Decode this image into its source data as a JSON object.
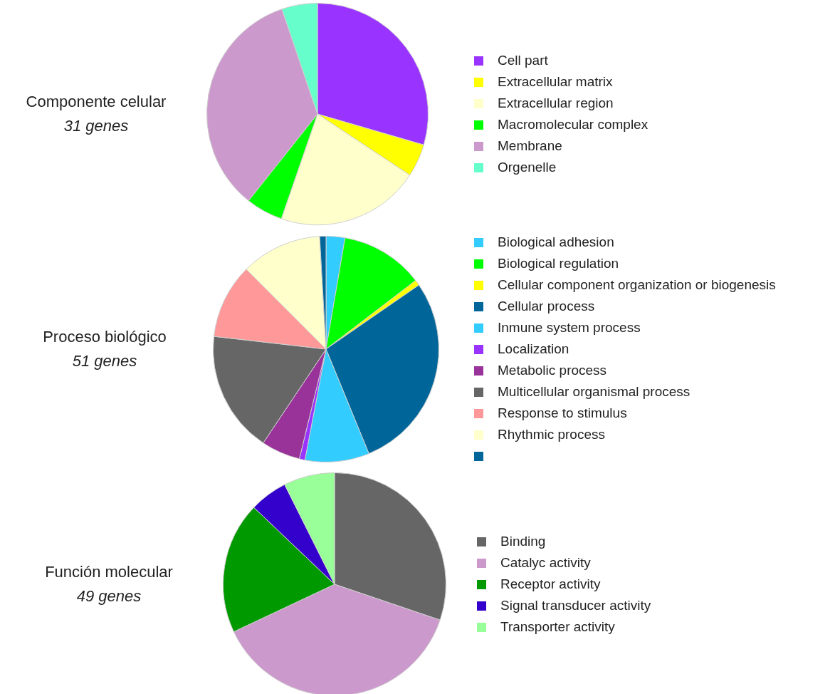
{
  "chart_data": [
    {
      "type": "pie",
      "title": "Componente celular",
      "subtitle": "31 genes",
      "legend": "right",
      "categories": [
        "Cell part",
        "Extracellular matrix",
        "Extracellular region",
        "Macromolecular complex",
        "Membrane",
        "Orgenelle"
      ],
      "values": [
        29.5,
        4.8,
        21.0,
        5.4,
        34.1,
        5.2
      ],
      "colors": [
        "#9933ff",
        "#ffff00",
        "#ffffcc",
        "#00ff00",
        "#cc99cc",
        "#66ffcc"
      ]
    },
    {
      "type": "pie",
      "title": "Proceso biológico",
      "subtitle": "51 genes",
      "legend": "right",
      "categories": [
        "Biological adhesion",
        "Biological regulation",
        "Cellular component organization or biogenesis",
        "Cellular process",
        "Inmune system process",
        "Localization",
        "Metabolic process",
        "Multicellular organismal process",
        "Response to stimulus",
        "Rhythmic process",
        null
      ],
      "values": [
        2.7,
        11.9,
        0.8,
        28.4,
        9.2,
        0.8,
        5.6,
        17.4,
        10.7,
        11.6,
        0.9
      ],
      "colors": [
        "#33ccff",
        "#00ff00",
        "#ffff00",
        "#006699",
        "#33ccff",
        "#9933ff",
        "#993399",
        "#666666",
        "#ff9999",
        "#ffffcc",
        "#006699"
      ]
    },
    {
      "type": "pie",
      "title": "Función molecular",
      "subtitle": "49 genes",
      "legend": "right",
      "categories": [
        "Binding",
        "Catalyc activity",
        "Receptor activity",
        "Signal transducer activity",
        "Transporter activity"
      ],
      "values": [
        30.2,
        37.8,
        19.1,
        5.5,
        7.4
      ],
      "colors": [
        "#666666",
        "#cc99cc",
        "#009900",
        "#3300cc",
        "#99ff99"
      ]
    }
  ]
}
